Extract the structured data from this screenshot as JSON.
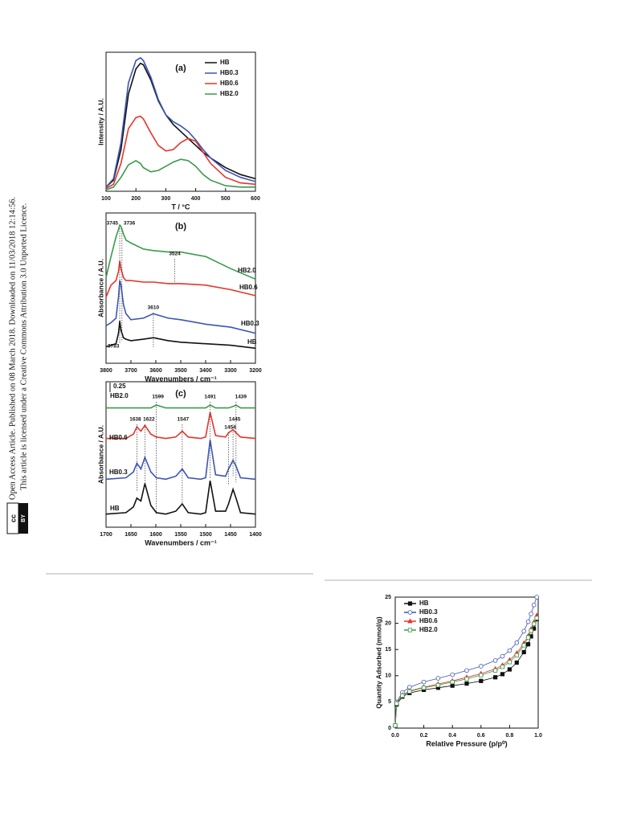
{
  "sidebar": {
    "line1": "Open Access Article. Published on 08 March 2018. Downloaded on 11/03/2018 12:14:56.",
    "line2": "This article is licensed under a Creative Commons Attribution 3.0 Unported Licence.",
    "badge_icon": "cc",
    "badge_text": "BY"
  },
  "chart_data": [
    {
      "type": "line",
      "title": "(a)",
      "x_label": "T / °C",
      "y_label": "Intensity / A.U.",
      "x": [
        100,
        125,
        150,
        175,
        200,
        215,
        225,
        250,
        275,
        300,
        325,
        350,
        375,
        400,
        425,
        450,
        500,
        550,
        600
      ],
      "xlim": [
        100,
        600
      ],
      "ylim": [
        0,
        100
      ],
      "xticks": [
        100,
        200,
        300,
        400,
        500,
        600
      ],
      "legend": "top-right",
      "series": [
        {
          "name": "HB",
          "color": "#111111",
          "values": [
            3,
            8,
            30,
            70,
            88,
            92,
            91,
            80,
            65,
            55,
            48,
            43,
            38,
            33,
            28,
            24,
            17,
            12,
            9
          ]
        },
        {
          "name": "HB0.3",
          "color": "#3b55b5",
          "values": [
            3,
            9,
            35,
            78,
            94,
            96,
            94,
            82,
            66,
            55,
            50,
            47,
            43,
            37,
            30,
            24,
            15,
            10,
            7
          ]
        },
        {
          "name": "HB0.6",
          "color": "#e5352b",
          "values": [
            2,
            5,
            20,
            45,
            53,
            54,
            52,
            42,
            33,
            29,
            30,
            35,
            38,
            36,
            28,
            20,
            10,
            6,
            5
          ]
        },
        {
          "name": "HB2.0",
          "color": "#3a9a4c",
          "values": [
            1,
            3,
            10,
            19,
            22,
            20,
            17,
            14,
            15,
            18,
            21,
            23,
            22,
            18,
            12,
            8,
            4,
            3,
            3
          ]
        }
      ]
    },
    {
      "type": "line",
      "title": "(b)",
      "x_label": "Wavenumbers / cm⁻¹",
      "y_label": "Absorbance / A.U.",
      "x": [
        3800,
        3780,
        3760,
        3750,
        3745,
        3740,
        3730,
        3720,
        3700,
        3650,
        3610,
        3550,
        3500,
        3400,
        3300,
        3200
      ],
      "xlim": [
        3800,
        3200
      ],
      "ylim": [
        0,
        100
      ],
      "xticks": [
        3800,
        3700,
        3600,
        3500,
        3400,
        3300,
        3200
      ],
      "annotations": [
        3745,
        3736,
        3524,
        3610,
        3783
      ],
      "series": [
        {
          "name": "HB2.0",
          "color": "#3a9a4c",
          "values": [
            57,
            71,
            84,
            89,
            92,
            91,
            86,
            82,
            80,
            76,
            75,
            74,
            74,
            71,
            63,
            56
          ]
        },
        {
          "name": "HB0.6",
          "color": "#e5352b",
          "values": [
            44,
            52,
            55,
            61,
            68,
            63,
            57,
            55,
            55,
            54,
            54,
            53,
            53,
            52,
            49,
            45
          ]
        },
        {
          "name": "HB0.3",
          "color": "#3b55b5",
          "values": [
            25,
            27,
            30,
            44,
            55,
            52,
            39,
            33,
            29,
            30,
            33,
            30,
            29,
            26,
            24,
            20
          ]
        },
        {
          "name": "HB",
          "color": "#111111",
          "values": [
            11,
            12,
            13,
            20,
            28,
            22,
            17,
            16,
            15,
            16,
            17,
            15,
            14,
            13,
            12,
            10
          ]
        }
      ]
    },
    {
      "type": "line",
      "title": "(c)",
      "x_label": "Wavenumbers / cm⁻¹",
      "y_label": "Absorbance / A.U.",
      "scale_bar": "0.25",
      "x": [
        1700,
        1660,
        1645,
        1638,
        1630,
        1622,
        1610,
        1599,
        1580,
        1560,
        1547,
        1535,
        1510,
        1500,
        1491,
        1480,
        1460,
        1454,
        1445,
        1439,
        1430,
        1400
      ],
      "xlim": [
        1700,
        1400
      ],
      "ylim": [
        0,
        100
      ],
      "xticks": [
        1700,
        1650,
        1600,
        1550,
        1500,
        1450,
        1400
      ],
      "annotations": [
        1638,
        1622,
        1599,
        1547,
        1491,
        1454,
        1445,
        1439
      ],
      "series": [
        {
          "name": "HB2.0",
          "color": "#3a9a4c",
          "values": [
            82,
            82,
            82,
            82,
            82,
            82,
            82,
            84,
            82,
            82,
            82,
            82,
            82,
            82,
            84,
            82,
            82,
            82,
            83,
            84,
            82,
            82
          ]
        },
        {
          "name": "HB0.6",
          "color": "#e5352b",
          "values": [
            61,
            61,
            64,
            69,
            66,
            70,
            64,
            62,
            61,
            62,
            66,
            62,
            61,
            62,
            79,
            63,
            62,
            65,
            67,
            65,
            62,
            61
          ]
        },
        {
          "name": "HB0.3",
          "color": "#3b55b5",
          "values": [
            33,
            34,
            38,
            44,
            40,
            48,
            38,
            34,
            33,
            35,
            40,
            34,
            33,
            34,
            60,
            36,
            35,
            40,
            46,
            42,
            34,
            33
          ]
        },
        {
          "name": "HB",
          "color": "#111111",
          "values": [
            9,
            10,
            14,
            20,
            18,
            30,
            15,
            10,
            9,
            11,
            16,
            10,
            9,
            10,
            32,
            11,
            11,
            16,
            26,
            20,
            10,
            9
          ]
        }
      ]
    },
    {
      "type": "scatter-line",
      "x_label": "Relative Pressure (p/p⁰)",
      "y_label": "Quantity Adsorbed (mmol/g)",
      "x": [
        0,
        0.01,
        0.05,
        0.1,
        0.2,
        0.3,
        0.4,
        0.5,
        0.6,
        0.7,
        0.75,
        0.8,
        0.85,
        0.9,
        0.93,
        0.95,
        0.97,
        0.99
      ],
      "xlim": [
        0,
        1
      ],
      "ylim": [
        0,
        25
      ],
      "legend": "top-left",
      "xticks": [
        {
          "value": 0,
          "label": "0.0"
        },
        0.2,
        0.4,
        0.6,
        0.8,
        {
          "value": 1,
          "label": "1.0"
        }
      ],
      "yticks": [
        0,
        5,
        10,
        15,
        20,
        25
      ],
      "series": [
        {
          "name": "HB",
          "color": "#111111",
          "marker": "square-filled",
          "values": [
            0.5,
            4.5,
            6,
            6.7,
            7.3,
            7.7,
            8.1,
            8.5,
            9,
            9.7,
            10.3,
            11.2,
            12.5,
            14.5,
            16,
            17.5,
            19,
            20.8
          ]
        },
        {
          "name": "HB0.3",
          "color": "#3b55b5",
          "marker": "circle-open",
          "values": [
            0.5,
            5,
            6.8,
            7.8,
            8.8,
            9.5,
            10.2,
            11,
            11.8,
            12.9,
            13.7,
            14.8,
            16.3,
            18.5,
            20.3,
            21.8,
            23.5,
            25
          ]
        },
        {
          "name": "HB0.6",
          "color": "#e5352b",
          "marker": "triangle-filled",
          "values": [
            0.5,
            4.8,
            6.3,
            7.1,
            7.8,
            8.4,
            9,
            9.7,
            10.4,
            11.3,
            12,
            13,
            14.3,
            16.2,
            17.6,
            18.9,
            20.2,
            21.5
          ]
        },
        {
          "name": "HB2.0",
          "color": "#3a9a4c",
          "marker": "square-open",
          "values": [
            0.5,
            4.7,
            6.2,
            7,
            7.7,
            8.2,
            8.8,
            9.4,
            10.1,
            11,
            11.7,
            12.6,
            13.9,
            15.8,
            17.3,
            18.6,
            19.9,
            21
          ]
        }
      ]
    }
  ]
}
